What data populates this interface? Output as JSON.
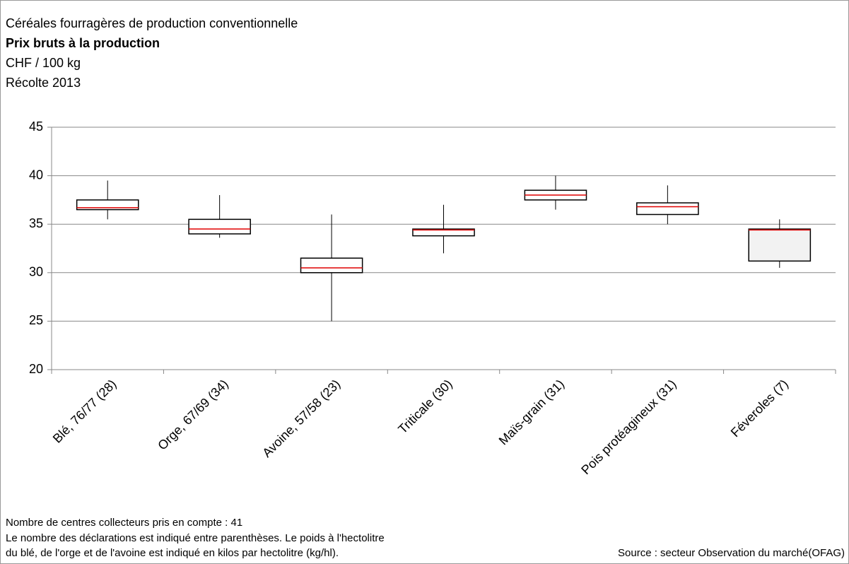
{
  "chart_data": {
    "type": "box",
    "title": "Céréales fourragères de production conventionnelle",
    "subtitle": "Prix bruts à la production",
    "unit": "CHF / 100 kg",
    "period": "Récolte 2013",
    "categories": [
      "Blé, 76/77 (28)",
      "Orge, 67/69 (34)",
      "Avoine, 57/58 (23)",
      "Triticale (30)",
      "Maïs-grain (31)",
      "Pois protéagineux (31)",
      "Féveroles (7)"
    ],
    "min": [
      35.5,
      33.6,
      25,
      32,
      36.5,
      35,
      30.5
    ],
    "q1": [
      36.5,
      34,
      30,
      33.8,
      37.5,
      36,
      31.2
    ],
    "median": [
      36.7,
      34.5,
      30.5,
      34.4,
      38,
      36.8,
      34.4
    ],
    "q3": [
      37.5,
      35.5,
      31.5,
      34.5,
      38.5,
      37.2,
      34.5
    ],
    "max": [
      39.5,
      38,
      36,
      37,
      40,
      39,
      35.5
    ],
    "box_colors": [
      "#ffffff",
      "#ffffff",
      "#ffffff",
      "#ffffff",
      "#ffffff",
      "#ffffff",
      "#f2f2f2"
    ],
    "median_color": "#e00000",
    "ylim": [
      20,
      45
    ],
    "yticks": [
      20,
      25,
      30,
      35,
      40,
      45
    ],
    "grid": true,
    "notes": [
      "Nombre de centres collecteurs pris en compte : 41",
      "Le nombre des déclarations est indiqué entre parenthèses. Le poids à l'hectolitre",
      "du blé, de l'orge et de l'avoine est indiqué en kilos par hectolitre (kg/hl)."
    ],
    "source": "Source : secteur Observation du marché(OFAG)"
  }
}
